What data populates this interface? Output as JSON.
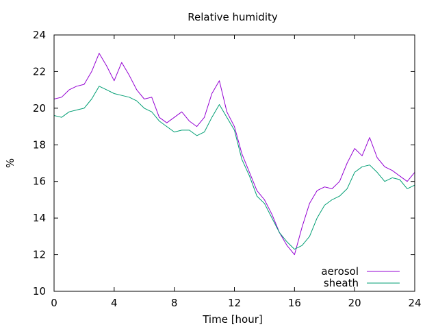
{
  "chart_data": {
    "type": "line",
    "title": "Relative humidity",
    "xlabel": "Time [hour]",
    "ylabel": "%",
    "xlim": [
      0,
      24
    ],
    "ylim": [
      10,
      24
    ],
    "xticks": [
      0,
      4,
      8,
      12,
      16,
      20,
      24
    ],
    "yticks": [
      10,
      12,
      14,
      16,
      18,
      20,
      22,
      24
    ],
    "grid": false,
    "legend_position": "bottom-right",
    "x": [
      0,
      0.5,
      1,
      1.5,
      2,
      2.5,
      3,
      3.5,
      4,
      4.5,
      5,
      5.5,
      6,
      6.5,
      7,
      7.5,
      8,
      8.5,
      9,
      9.5,
      10,
      10.5,
      11,
      11.5,
      12,
      12.5,
      13,
      13.5,
      14,
      14.5,
      15,
      15.5,
      16,
      16.5,
      17,
      17.5,
      18,
      18.5,
      19,
      19.5,
      20,
      20.5,
      21,
      21.5,
      22,
      22.5,
      23,
      23.5,
      24
    ],
    "series": [
      {
        "name": "aerosol",
        "color": "#9400d3",
        "values": [
          20.5,
          20.6,
          21.0,
          21.2,
          21.3,
          22.0,
          23.0,
          22.3,
          21.5,
          22.5,
          21.8,
          21.0,
          20.5,
          20.6,
          19.5,
          19.2,
          19.5,
          19.8,
          19.3,
          19.0,
          19.5,
          20.8,
          21.5,
          19.8,
          19.0,
          17.5,
          16.5,
          15.5,
          15.0,
          14.2,
          13.2,
          12.5,
          12.0,
          13.5,
          14.8,
          15.5,
          15.7,
          15.6,
          16.0,
          17.0,
          17.8,
          17.4,
          18.4,
          17.3,
          16.8,
          16.6,
          16.3,
          16.0,
          16.5
        ]
      },
      {
        "name": "sheath",
        "color": "#009e73",
        "values": [
          19.6,
          19.5,
          19.8,
          19.9,
          20.0,
          20.5,
          21.2,
          21.0,
          20.8,
          20.7,
          20.6,
          20.4,
          20.0,
          19.8,
          19.3,
          19.0,
          18.7,
          18.8,
          18.8,
          18.5,
          18.7,
          19.5,
          20.2,
          19.5,
          18.8,
          17.2,
          16.3,
          15.2,
          14.8,
          14.0,
          13.2,
          12.7,
          12.3,
          12.5,
          13.0,
          14.0,
          14.7,
          15.0,
          15.2,
          15.6,
          16.5,
          16.8,
          16.9,
          16.5,
          16.0,
          16.2,
          16.1,
          15.6,
          15.8
        ]
      }
    ]
  }
}
